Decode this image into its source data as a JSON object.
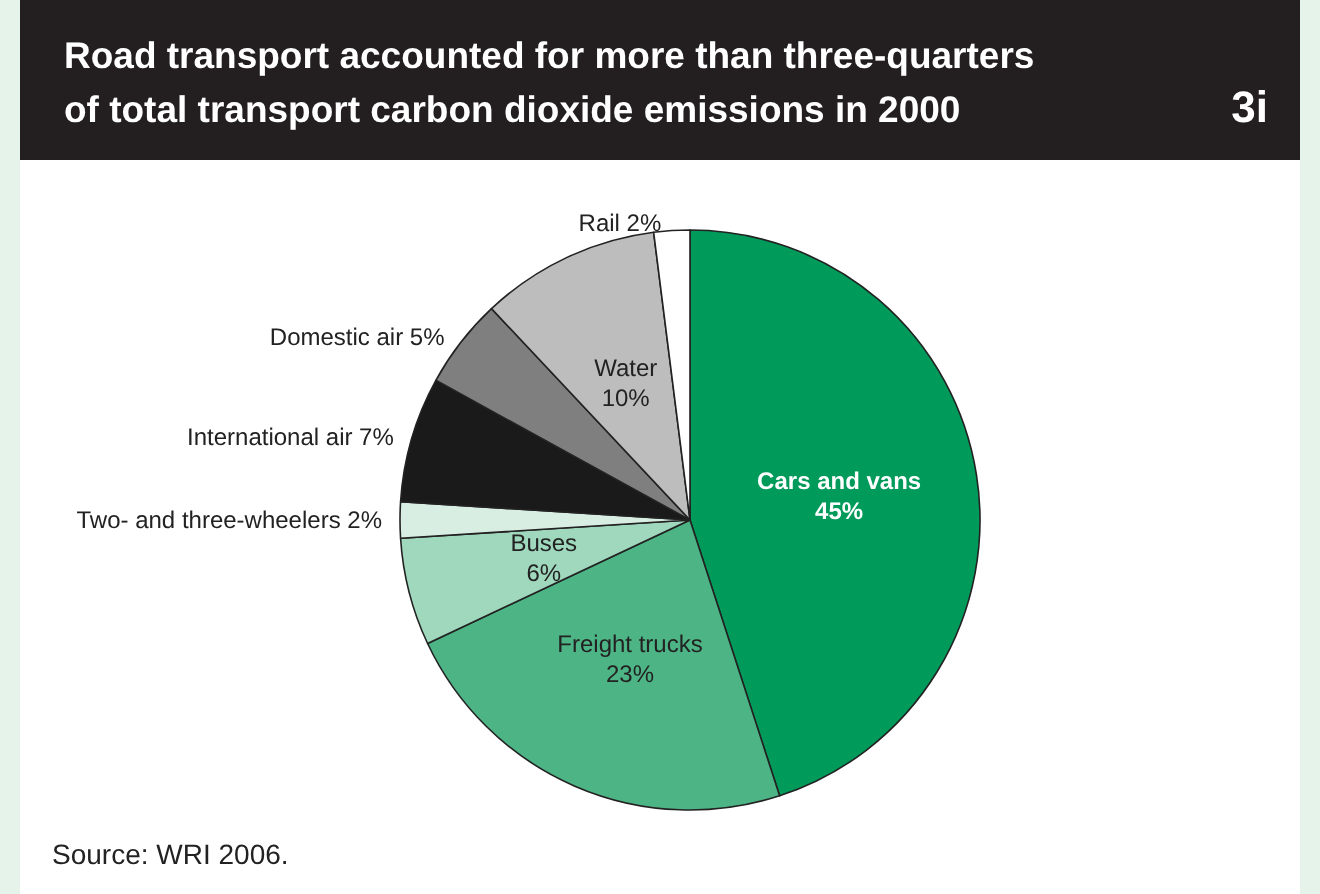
{
  "chart_data": {
    "type": "pie",
    "title": "Road transport accounted for more than three-quarters\nof total transport carbon dioxide emissions in 2000",
    "categories": [
      "Cars and vans",
      "Freight trucks",
      "Buses",
      "Two- and three-wheelers",
      "International air",
      "Domestic air",
      "Water",
      "Rail"
    ],
    "values": [
      45,
      23,
      6,
      2,
      7,
      5,
      10,
      2
    ],
    "value_labels": [
      "45%",
      "23%",
      "6%",
      "2%",
      "7%",
      "5%",
      "10%",
      "2%"
    ],
    "colors": [
      "#009a5a",
      "#4db585",
      "#9fd8bd",
      "#d8eee3",
      "#1a1a1a",
      "#7f7f7f",
      "#bdbdbd",
      "#ffffff"
    ],
    "annotations": [
      "3i",
      "Source: WRI 2006."
    ]
  }
}
